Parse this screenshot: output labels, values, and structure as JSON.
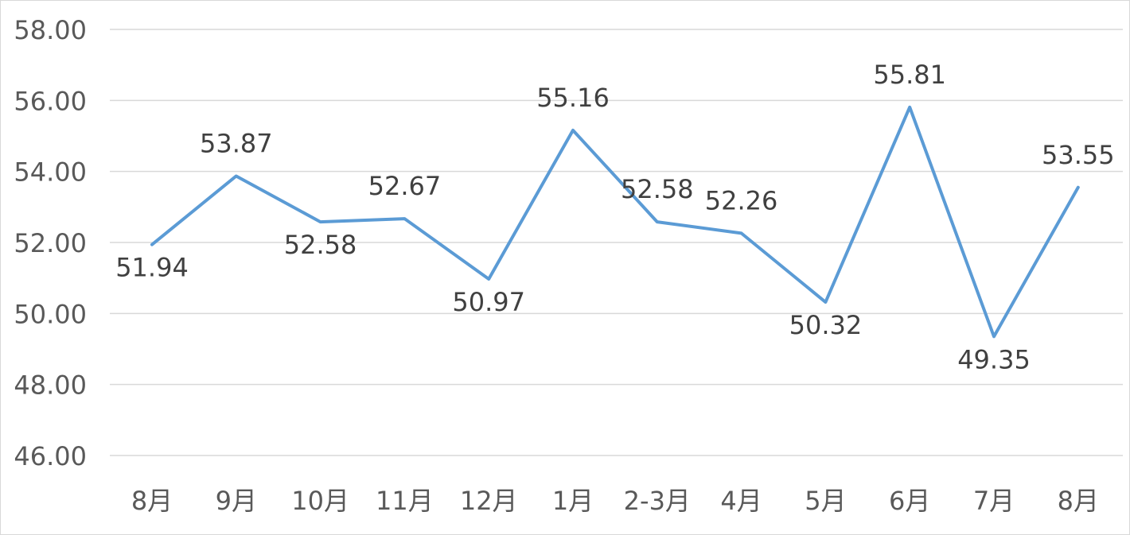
{
  "chart_data": {
    "type": "line",
    "title": "",
    "xlabel": "",
    "ylabel": "",
    "categories": [
      "8月",
      "9月",
      "10月",
      "11月",
      "12月",
      "1月",
      "2-3月",
      "4月",
      "5月",
      "6月",
      "7月",
      "8月"
    ],
    "series": [
      {
        "values": [
          51.94,
          53.87,
          52.58,
          52.67,
          50.97,
          55.16,
          52.58,
          52.26,
          50.32,
          55.81,
          49.35,
          53.55
        ],
        "labels": [
          "51.94",
          "53.87",
          "52.58",
          "52.67",
          "50.97",
          "55.16",
          "52.58",
          "52.26",
          "50.32",
          "55.81",
          "49.35",
          "53.55"
        ],
        "color": "#5b9bd5"
      }
    ],
    "ylim": [
      46,
      58
    ],
    "yticks": [
      46,
      48,
      50,
      52,
      54,
      56,
      58
    ],
    "ytick_labels": [
      "46.00",
      "48.00",
      "50.00",
      "52.00",
      "54.00",
      "56.00",
      "58.00"
    ],
    "grid": true,
    "legend": "none",
    "colors": {
      "gridline": "#d9d9d9",
      "tick_text": "#595959",
      "label_text": "#404040"
    }
  }
}
